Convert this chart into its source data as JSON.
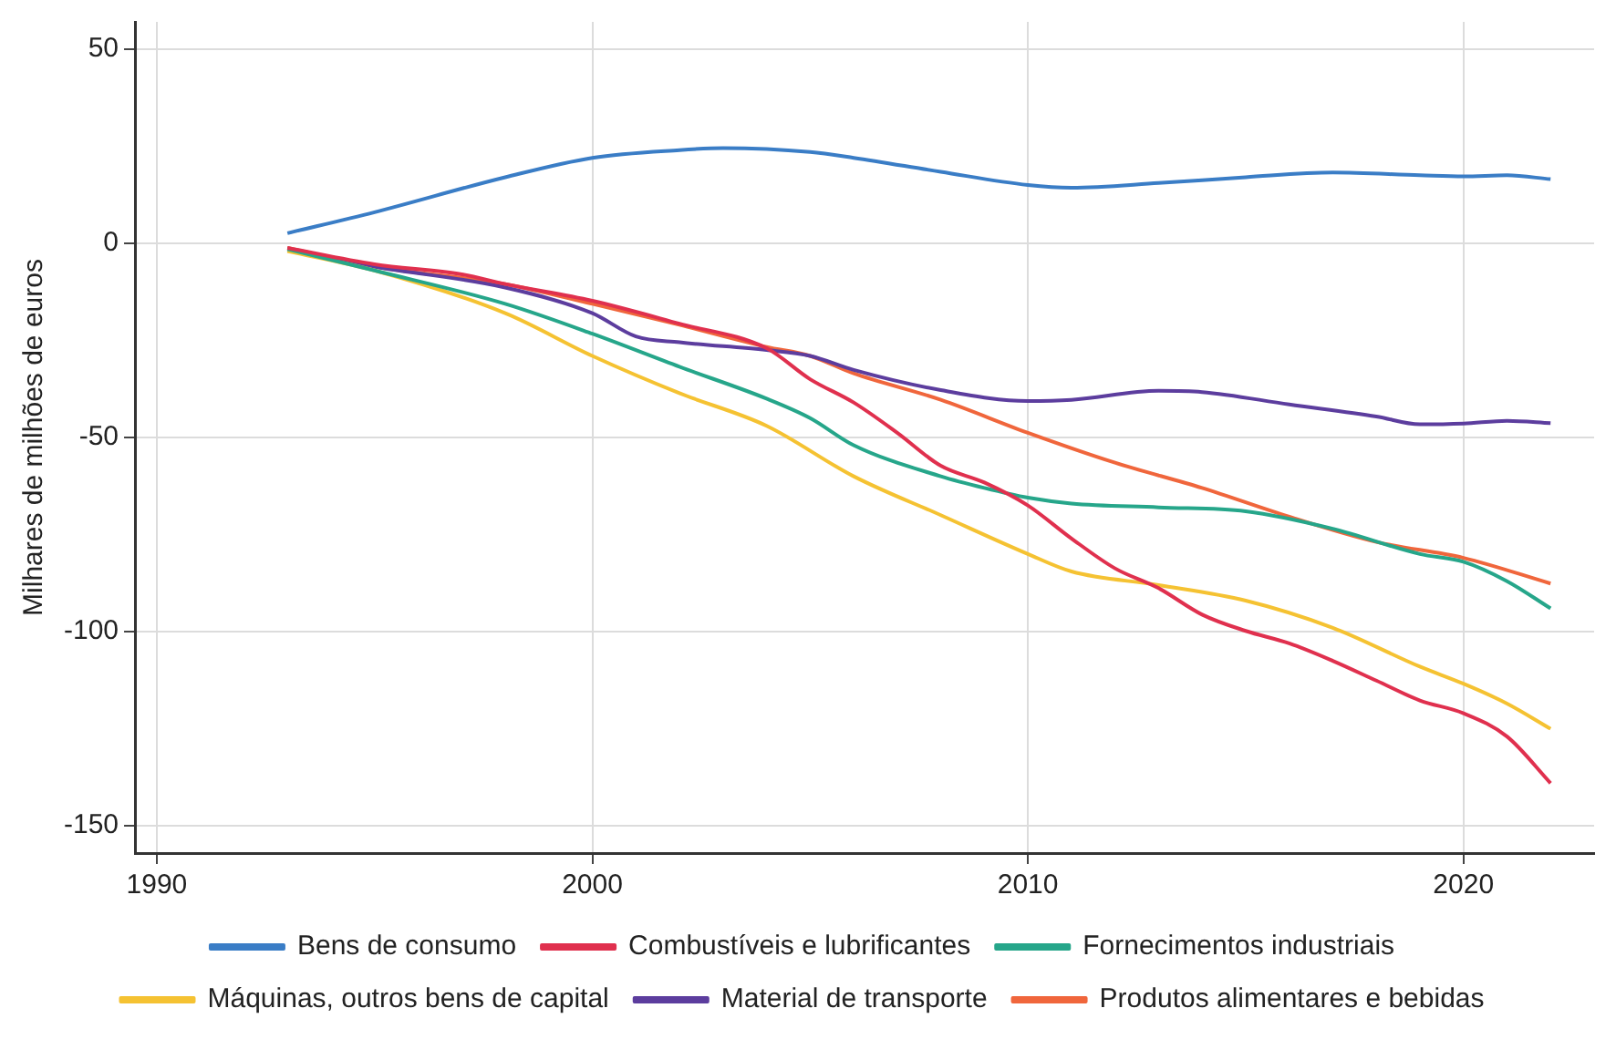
{
  "chart_data": {
    "type": "line",
    "ylabel": "Milhares de milhões de euros",
    "xlim": [
      1989.5,
      2023
    ],
    "xticks": [
      1990,
      2000,
      2010,
      2020
    ],
    "ylim": [
      -157,
      57
    ],
    "yticks": [
      -150,
      -100,
      -50,
      0,
      50
    ],
    "grid": true,
    "legend": "bottom",
    "marker": "none",
    "line_style": "solid",
    "series": [
      {
        "name": "Bens de consumo",
        "color": "#3a7dc6",
        "x": [
          1993,
          1995,
          1998,
          2000,
          2002,
          2003,
          2005,
          2006,
          2008,
          2010,
          2011,
          2013,
          2015,
          2017,
          2019,
          2020,
          2021,
          2022
        ],
        "values": [
          2.6,
          8,
          17,
          22,
          24,
          24.5,
          23.5,
          22,
          18.4,
          15,
          14.3,
          15.5,
          17,
          18.2,
          17.5,
          17.2,
          17.5,
          16.5
        ]
      },
      {
        "name": "Combustíveis e lubrificantes",
        "color": "#e0304e",
        "x": [
          1993,
          1995,
          1997,
          1998,
          2000,
          2002,
          2004,
          2005,
          2006,
          2007,
          2008,
          2009,
          2010,
          2011,
          2012,
          2013,
          2014,
          2015,
          2016,
          2017,
          2018,
          2019,
          2020,
          2021,
          2022
        ],
        "values": [
          -1.2,
          -5.4,
          -8,
          -10.5,
          -14.8,
          -20.7,
          -27,
          -35,
          -41,
          -48.8,
          -57.3,
          -61.6,
          -67.5,
          -76,
          -83.7,
          -88.8,
          -95.6,
          -99.8,
          -103,
          -107.5,
          -112.6,
          -117.7,
          -121,
          -127,
          -139
        ]
      },
      {
        "name": "Fornecimentos industriais",
        "color": "#26a68a",
        "x": [
          1993,
          1995,
          1998,
          2000,
          2002,
          2004,
          2005,
          2006,
          2008,
          2009,
          2010,
          2011,
          2013,
          2015,
          2017,
          2019,
          2020,
          2021,
          2022
        ],
        "values": [
          -1.5,
          -7,
          -15.6,
          -23.3,
          -31.8,
          -40,
          -45,
          -52,
          -60,
          -63,
          -65.5,
          -67,
          -68,
          -69,
          -73.5,
          -80,
          -82,
          -87,
          -94
        ]
      },
      {
        "name": "Máquinas, outros bens de capital",
        "color": "#f5c232",
        "x": [
          1993,
          1995,
          1998,
          2000,
          2002,
          2004,
          2006,
          2008,
          2010,
          2011,
          2013,
          2015,
          2017,
          2019,
          2020,
          2021,
          2022
        ],
        "values": [
          -2,
          -7,
          -18,
          -29,
          -38.6,
          -47,
          -60,
          -70,
          -80,
          -84.5,
          -88,
          -92,
          -99,
          -109,
          -113.4,
          -118.5,
          -125
        ]
      },
      {
        "name": "Material de transporte",
        "color": "#5c3d9e",
        "x": [
          1993,
          1995,
          1998,
          2000,
          2001,
          2002,
          2004,
          2005,
          2006,
          2008,
          2010,
          2011,
          2013,
          2014,
          2016,
          2018,
          2019,
          2020,
          2021,
          2022
        ],
        "values": [
          -1.5,
          -6,
          -11.4,
          -18,
          -24,
          -25.5,
          -27.5,
          -29,
          -32.6,
          -37.8,
          -40.6,
          -40.3,
          -38,
          -38.3,
          -41.5,
          -44.6,
          -46.6,
          -46.4,
          -45.7,
          -46.3
        ]
      },
      {
        "name": "Produtos alimentares e bebidas",
        "color": "#f0663c",
        "x": [
          1993,
          1995,
          1998,
          2000,
          2002,
          2004,
          2005,
          2006,
          2008,
          2010,
          2012,
          2014,
          2016,
          2018,
          2020,
          2022
        ],
        "values": [
          -1.2,
          -6,
          -10.5,
          -15.6,
          -21,
          -26.7,
          -29,
          -33.5,
          -40.3,
          -48.8,
          -56.5,
          -63,
          -70.4,
          -76.9,
          -81,
          -87.6
        ]
      }
    ]
  }
}
